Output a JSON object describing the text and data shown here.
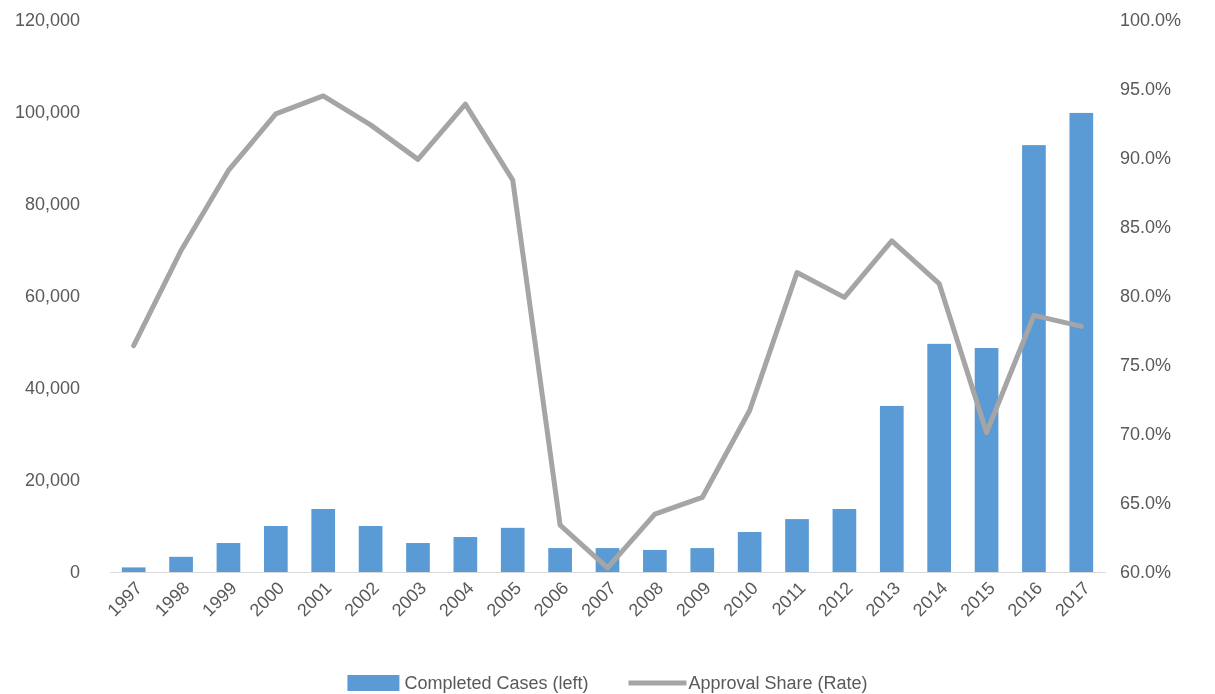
{
  "chart_data": {
    "type": "bar",
    "categories": [
      "1997",
      "1998",
      "1999",
      "2000",
      "2001",
      "2002",
      "2003",
      "2004",
      "2005",
      "2006",
      "2007",
      "2008",
      "2009",
      "2010",
      "2011",
      "2012",
      "2013",
      "2014",
      "2015",
      "2016",
      "2017"
    ],
    "series": [
      {
        "name": "Completed Cases (left)",
        "color": "#5b9bd5",
        "values": [
          1000,
          3300,
          6300,
          10000,
          13700,
          10000,
          6300,
          7600,
          9600,
          5200,
          5200,
          4800,
          5200,
          8700,
          11500,
          13700,
          36100,
          49600,
          48700,
          92800,
          99800
        ]
      },
      {
        "name": "Approval Share (Rate)",
        "type": "line",
        "axis": "y2",
        "color": "#a5a5a5",
        "values": [
          76.4,
          83.3,
          89.1,
          93.2,
          94.5,
          92.4,
          89.9,
          93.9,
          88.4,
          63.4,
          60.3,
          64.2,
          65.4,
          71.7,
          81.7,
          79.9,
          84.0,
          80.9,
          70.1,
          78.6,
          77.8
        ]
      }
    ],
    "ylim": [
      0,
      120000
    ],
    "yticks": [
      0,
      {
        "value": 20000,
        "label": "20,000"
      },
      {
        "value": 40000,
        "label": "40,000"
      },
      {
        "value": 60000,
        "label": "60,000"
      },
      {
        "value": 80000,
        "label": "80,000"
      },
      {
        "value": 100000,
        "label": "100,000"
      },
      {
        "value": 120000,
        "label": "120,000"
      }
    ],
    "y2lim": [
      60,
      100
    ],
    "y2ticks": [
      {
        "value": 60,
        "label": "60.0%"
      },
      {
        "value": 65,
        "label": "65.0%"
      },
      {
        "value": 70,
        "label": "70.0%"
      },
      {
        "value": 75,
        "label": "75.0%"
      },
      {
        "value": 80,
        "label": "80.0%"
      },
      {
        "value": 85,
        "label": "85.0%"
      },
      {
        "value": 90,
        "label": "90.0%"
      },
      {
        "value": 95,
        "label": "95.0%"
      },
      {
        "value": 100,
        "label": "100.0%"
      }
    ],
    "legend": "bottom",
    "grid": false
  }
}
